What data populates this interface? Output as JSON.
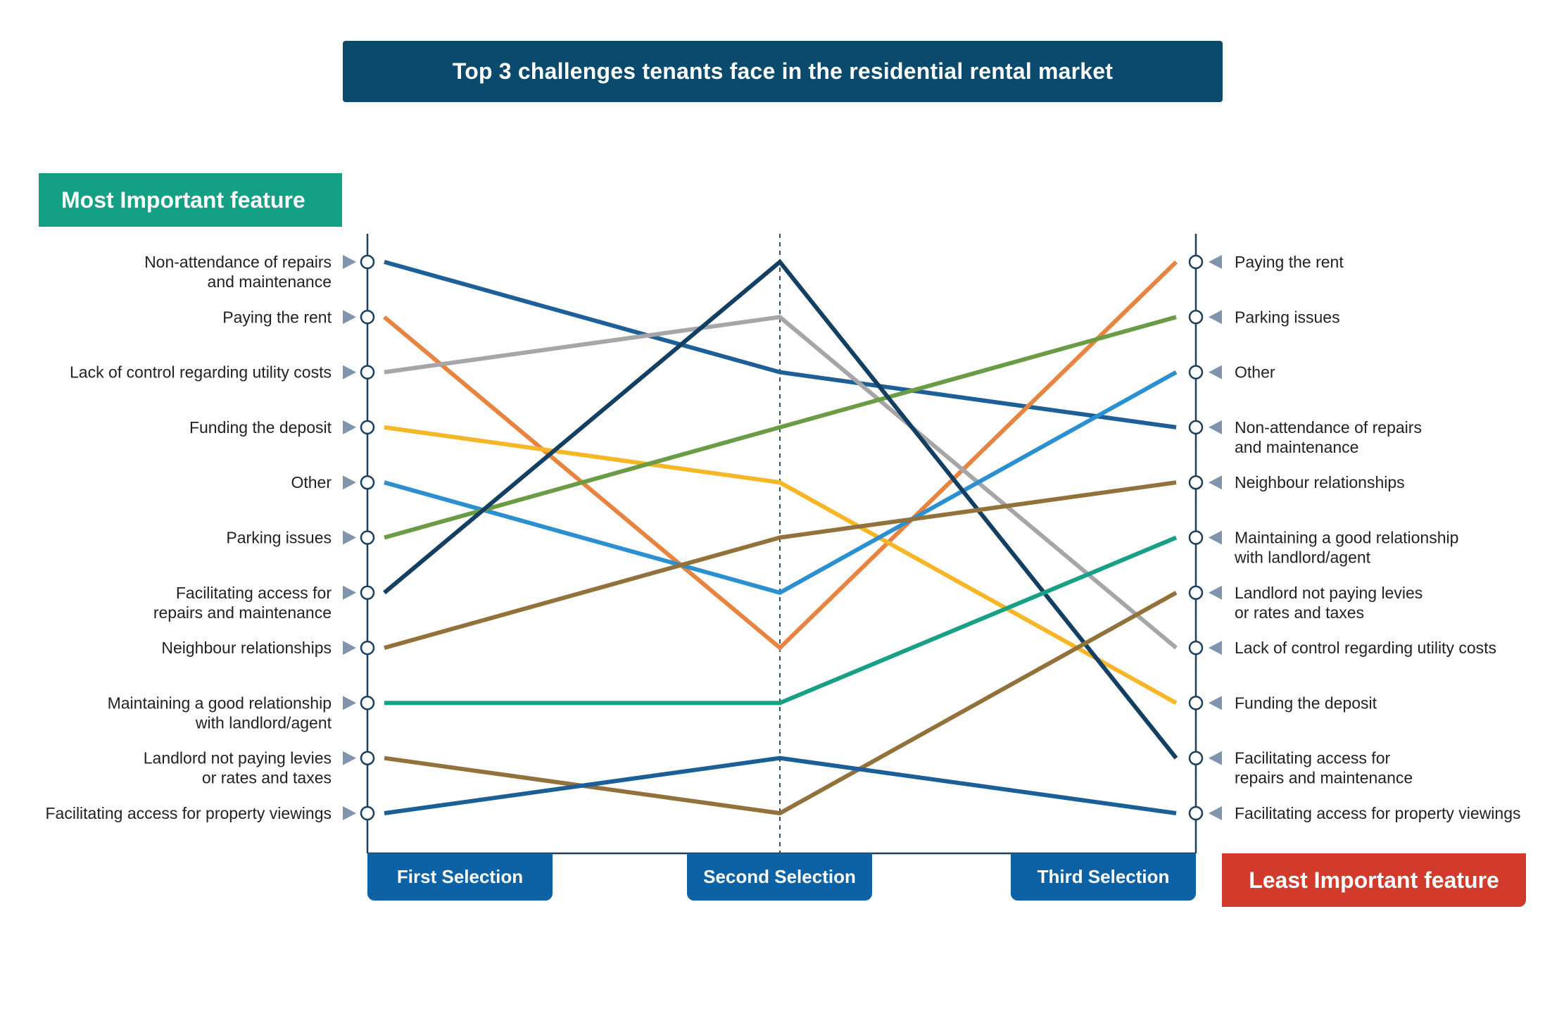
{
  "title": "Top 3 challenges tenants face in the residential rental market",
  "most_important_label": "Most Important feature",
  "least_important_label": "Least Important feature",
  "columns": [
    "First Selection",
    "Second Selection",
    "Third Selection"
  ],
  "colors": {
    "title_bg": "#0b4a6d",
    "most_important_bg": "#14a085",
    "least_important_bg": "#d23a2b",
    "column_label_bg": "#0d62a6",
    "axis": "#1b3f5e",
    "marker": "#7f95ad"
  },
  "chart_data": {
    "type": "line",
    "title": "Top 3 challenges tenants face in the residential rental market",
    "x": [
      "First Selection",
      "Second Selection",
      "Third Selection"
    ],
    "y_direction": "rank 1 at top (most important) to rank 11 at bottom (least important)",
    "ylim": [
      1,
      11
    ],
    "grid": false,
    "left_axis_labels": [
      [
        "Non-attendance of repairs",
        "and maintenance"
      ],
      [
        "Paying the rent"
      ],
      [
        "Lack of control regarding utility costs"
      ],
      [
        "Funding the deposit"
      ],
      [
        "Other"
      ],
      [
        "Parking issues"
      ],
      [
        "Facilitating access for",
        "repairs and maintenance"
      ],
      [
        "Neighbour relationships"
      ],
      [
        "Maintaining a good relationship",
        "with landlord/agent"
      ],
      [
        "Landlord not paying levies",
        "or rates and taxes"
      ],
      [
        "Facilitating access for property viewings"
      ]
    ],
    "right_axis_labels": [
      [
        "Paying the rent"
      ],
      [
        "Parking issues"
      ],
      [
        "Other"
      ],
      [
        "Non-attendance of repairs",
        "and maintenance"
      ],
      [
        "Neighbour relationships"
      ],
      [
        "Maintaining a good relationship",
        "with landlord/agent"
      ],
      [
        "Landlord not paying levies",
        "or rates and taxes"
      ],
      [
        "Lack of control regarding utility costs"
      ],
      [
        "Funding the deposit"
      ],
      [
        "Facilitating access for",
        "repairs and maintenance"
      ],
      [
        "Facilitating access for property viewings"
      ]
    ],
    "series": [
      {
        "color": "#1d5f99",
        "values": [
          1,
          3,
          4
        ]
      },
      {
        "color": "#e8843f",
        "values": [
          2,
          8,
          1
        ]
      },
      {
        "color": "#a6a6a8",
        "values": [
          3,
          2,
          8
        ]
      },
      {
        "color": "#f6b626",
        "values": [
          4,
          5,
          9
        ]
      },
      {
        "color": "#2a90d2",
        "values": [
          5,
          7,
          3
        ]
      },
      {
        "color": "#6a9b45",
        "values": [
          6,
          4,
          2
        ]
      },
      {
        "color": "#123f62",
        "values": [
          7,
          1,
          10
        ]
      },
      {
        "color": "#92723a",
        "values": [
          8,
          6,
          5
        ]
      },
      {
        "color": "#17a085",
        "values": [
          9,
          9,
          6
        ]
      },
      {
        "color": "#92723a",
        "values": [
          10,
          11,
          7
        ]
      },
      {
        "color": "#1b5f98",
        "values": [
          11,
          10,
          11
        ]
      }
    ]
  }
}
